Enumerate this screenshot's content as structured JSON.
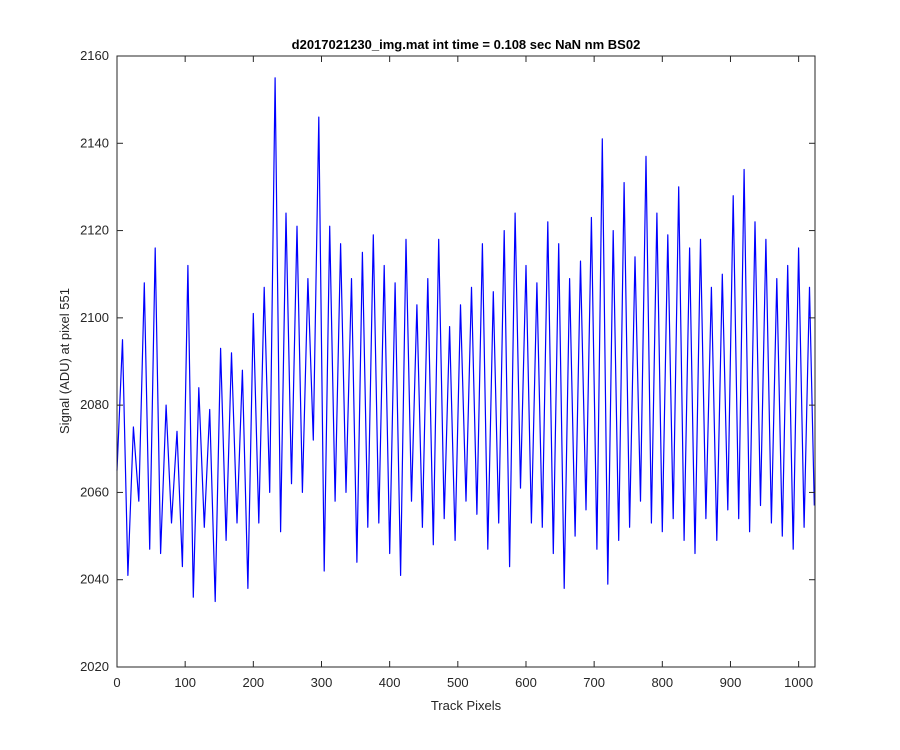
{
  "chart_data": {
    "type": "line",
    "title": "d2017021230_img.mat int time = 0.108 sec  NaN nm BS02",
    "xlabel": "Track Pixels",
    "ylabel": "Signal (ADU) at pixel 551",
    "xlim": [
      0,
      1024
    ],
    "ylim": [
      2020,
      2160
    ],
    "xticks": [
      0,
      100,
      200,
      300,
      400,
      500,
      600,
      700,
      800,
      900,
      1000
    ],
    "yticks": [
      2020,
      2040,
      2060,
      2080,
      2100,
      2120,
      2140,
      2160
    ],
    "grid": false,
    "line_color": "#0000ff",
    "series": [
      {
        "x": [
          0,
          8,
          16,
          24,
          32,
          40,
          48,
          56,
          64,
          72,
          80,
          88,
          96,
          104,
          112,
          120,
          128,
          136,
          144,
          152,
          160,
          168,
          176,
          184,
          192,
          200,
          208,
          216,
          224,
          232,
          240,
          248,
          256,
          264,
          272,
          280,
          288,
          296,
          304,
          312,
          320,
          328,
          336,
          344,
          352,
          360,
          368,
          376,
          384,
          392,
          400,
          408,
          416,
          424,
          432,
          440,
          448,
          456,
          464,
          472,
          480,
          488,
          496,
          504,
          512,
          520,
          528,
          536,
          544,
          552,
          560,
          568,
          576,
          584,
          592,
          600,
          608,
          616,
          624,
          632,
          640,
          648,
          656,
          664,
          672,
          680,
          688,
          696,
          704,
          712,
          720,
          728,
          736,
          744,
          752,
          760,
          768,
          776,
          784,
          792,
          800,
          808,
          816,
          824,
          832,
          840,
          848,
          856,
          864,
          872,
          880,
          888,
          896,
          904,
          912,
          920,
          928,
          936,
          944,
          952,
          960,
          968,
          976,
          984,
          992,
          1000,
          1008,
          1016,
          1023
        ],
        "values": [
          2065,
          2095,
          2041,
          2075,
          2058,
          2108,
          2047,
          2116,
          2046,
          2080,
          2053,
          2074,
          2043,
          2112,
          2036,
          2084,
          2052,
          2079,
          2035,
          2093,
          2049,
          2092,
          2053,
          2088,
          2038,
          2101,
          2053,
          2107,
          2060,
          2155,
          2051,
          2124,
          2062,
          2121,
          2060,
          2109,
          2072,
          2146,
          2042,
          2121,
          2058,
          2117,
          2060,
          2109,
          2044,
          2115,
          2052,
          2119,
          2053,
          2112,
          2046,
          2108,
          2041,
          2118,
          2058,
          2103,
          2052,
          2109,
          2048,
          2118,
          2054,
          2098,
          2049,
          2103,
          2058,
          2107,
          2055,
          2117,
          2047,
          2106,
          2053,
          2120,
          2043,
          2124,
          2061,
          2112,
          2053,
          2108,
          2052,
          2122,
          2046,
          2117,
          2038,
          2109,
          2050,
          2113,
          2056,
          2123,
          2047,
          2141,
          2039,
          2120,
          2049,
          2131,
          2052,
          2114,
          2058,
          2137,
          2053,
          2124,
          2051,
          2119,
          2054,
          2130,
          2049,
          2116,
          2046,
          2118,
          2054,
          2107,
          2049,
          2110,
          2056,
          2128,
          2054,
          2134,
          2051,
          2122,
          2057,
          2118,
          2053,
          2109,
          2050,
          2112,
          2047,
          2116,
          2052,
          2107,
          2057
        ]
      }
    ]
  }
}
